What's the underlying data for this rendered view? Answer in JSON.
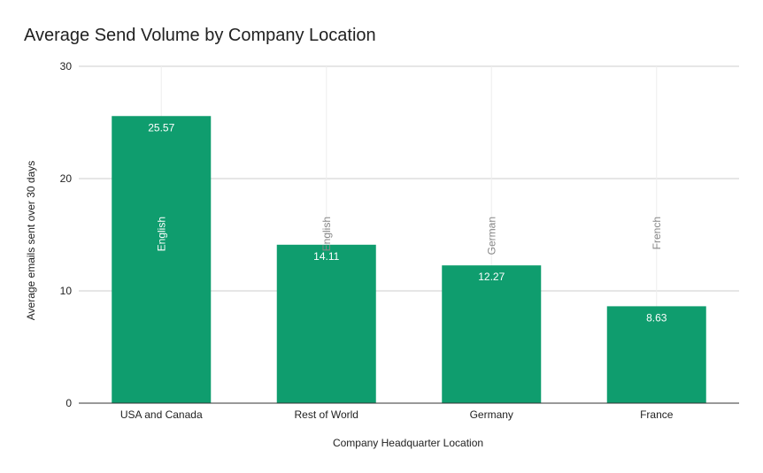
{
  "chart_data": {
    "type": "bar",
    "title": "Average Send Volume by Company Location",
    "xlabel": "Company Headquarter Location",
    "ylabel": "Average emails sent over 30 days",
    "categories": [
      "USA and Canada",
      "Rest of World",
      "Germany",
      "France"
    ],
    "values": [
      25.57,
      14.11,
      12.27,
      8.63
    ],
    "data_labels": [
      "25.57",
      "14.11",
      "12.27",
      "8.63"
    ],
    "annotations": [
      "English",
      "English",
      "German",
      "French"
    ],
    "ylim": [
      0,
      30
    ],
    "yticks": [
      0,
      10,
      20,
      30
    ],
    "grid": true,
    "legend": "none",
    "bar_color": "#0f9d6e"
  }
}
